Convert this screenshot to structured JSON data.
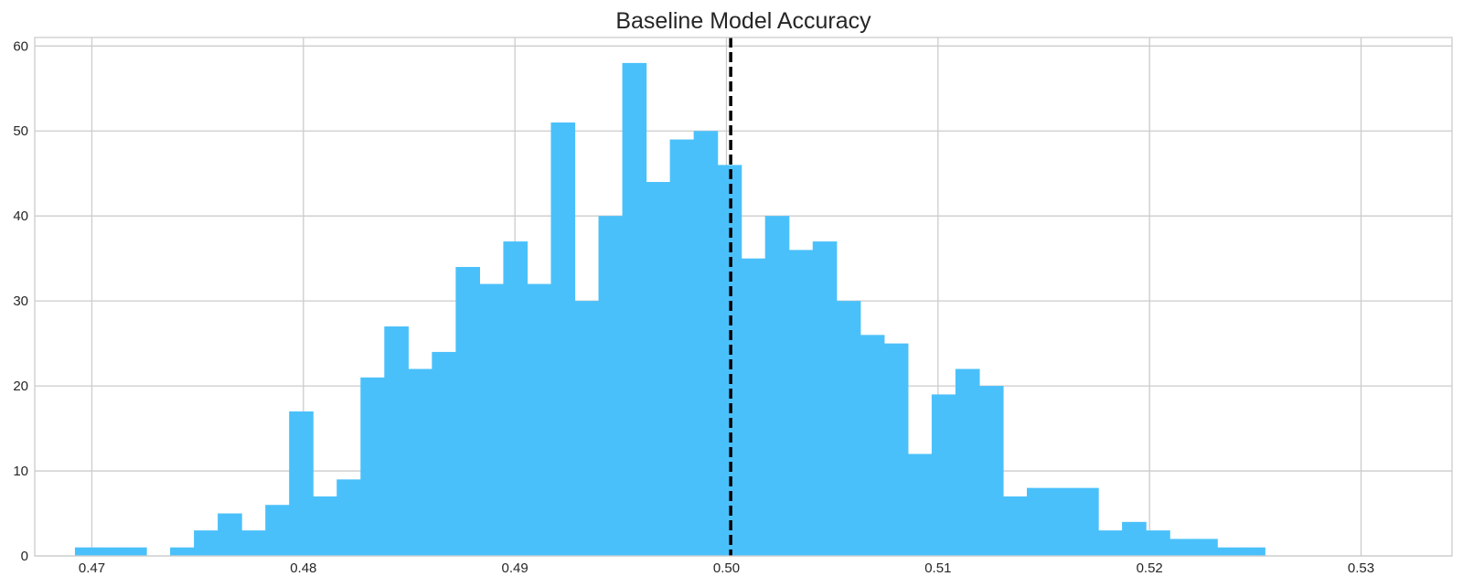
{
  "chart_data": {
    "type": "bar",
    "subtype": "histogram",
    "title": "Baseline Model Accuracy",
    "xlabel": "",
    "ylabel": "",
    "xlim": [
      0.4673,
      0.5343
    ],
    "ylim": [
      0,
      61
    ],
    "bin_start": 0.4692,
    "bin_width": 0.001125,
    "counts": [
      1,
      1,
      1,
      0,
      1,
      3,
      5,
      3,
      6,
      17,
      7,
      9,
      21,
      27,
      22,
      24,
      34,
      32,
      37,
      32,
      51,
      30,
      40,
      58,
      44,
      49,
      50,
      46,
      35,
      40,
      36,
      37,
      30,
      26,
      25,
      12,
      19,
      22,
      20,
      7,
      8,
      8,
      8,
      3,
      4,
      3,
      2,
      2,
      1,
      1
    ],
    "reference_line": {
      "x": 0.5002,
      "style": "dashed",
      "color": "#000000"
    },
    "x_ticks": [
      0.47,
      0.48,
      0.49,
      0.5,
      0.51,
      0.52,
      0.53
    ],
    "x_tick_labels": [
      "0.47",
      "0.48",
      "0.49",
      "0.50",
      "0.51",
      "0.52",
      "0.53"
    ],
    "y_ticks": [
      0,
      10,
      20,
      30,
      40,
      50,
      60
    ],
    "y_tick_labels": [
      "0",
      "10",
      "20",
      "30",
      "40",
      "50",
      "60"
    ],
    "grid": true,
    "colors": {
      "bar": "#4ac0fa",
      "grid": "#cccccc",
      "axis": "#cccccc",
      "text": "#262626"
    }
  }
}
